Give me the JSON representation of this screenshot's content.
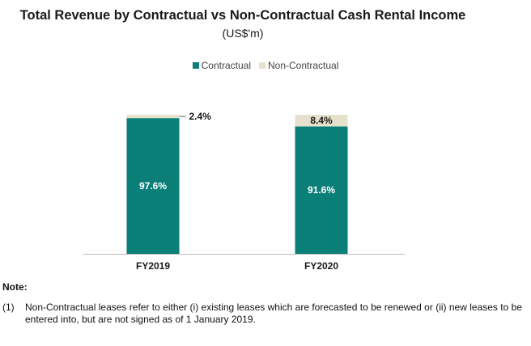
{
  "chart_data": {
    "type": "bar",
    "stacked": true,
    "title": "Total Revenue by Contractual vs Non-Contractual Cash Rental Income",
    "subtitle": "(US$'m)",
    "categories": [
      "FY2019",
      "FY2020"
    ],
    "series": [
      {
        "name": "Contractual",
        "values": [
          97.6,
          91.6
        ],
        "labels": [
          "97.6%",
          "91.6%"
        ]
      },
      {
        "name": "Non-Contractual",
        "values": [
          2.4,
          8.4
        ],
        "labels": [
          "2.4%",
          "8.4%"
        ]
      }
    ],
    "ylim": [
      0,
      100
    ],
    "legend_position": "top-center",
    "grid": false,
    "colors": {
      "contractual": "#0a7f78",
      "non_contractual": "#e6e1cc"
    }
  },
  "note": {
    "heading": "Note:",
    "number": "(1)",
    "text": "Non-Contractual leases refer to either (i) existing leases which are forecasted to be renewed or (ii) new leases to be entered into, but are not signed as of 1 January 2019."
  }
}
